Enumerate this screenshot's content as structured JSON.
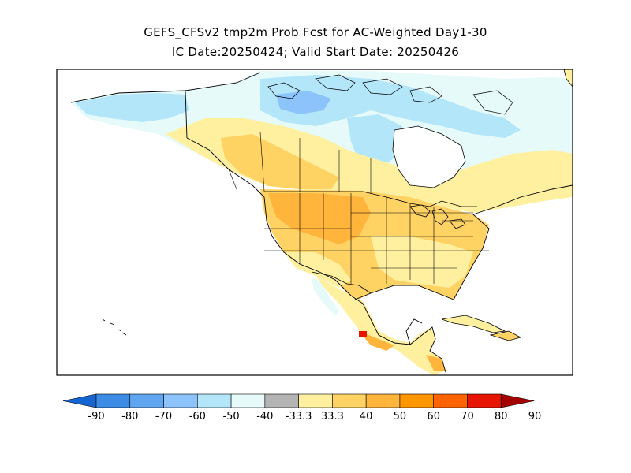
{
  "title_line1": "GEFS_CFSv2 tmp2m Prob Fcst for AC-Weighted Day1-30",
  "title_line2": "IC Date:20250424; Valid Start Date: 20250426",
  "colorbar": {
    "colors": [
      "#1464d2",
      "#3c8ce6",
      "#5fa5f0",
      "#8cc3fa",
      "#b4e6fa",
      "#e6fafa",
      "#b4b4b4",
      "#fff0a0",
      "#ffd264",
      "#ffb43c",
      "#ff9600",
      "#ff6400",
      "#e61400",
      "#a50000"
    ],
    "labels": [
      "-90",
      "-80",
      "-70",
      "-60",
      "-50",
      "-40",
      "-33.3",
      "33.3",
      "40",
      "50",
      "60",
      "70",
      "80",
      "90"
    ]
  },
  "map": {
    "border_color": "#000000",
    "ocean_color": "#ffffff",
    "region": "North America"
  }
}
